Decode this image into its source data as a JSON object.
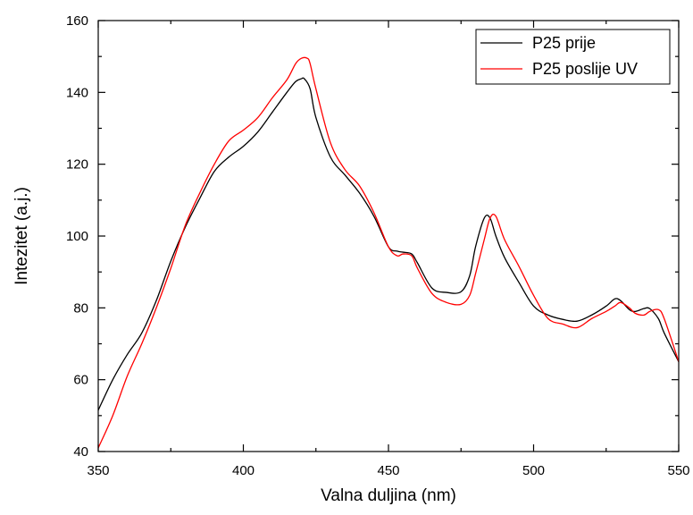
{
  "chart_data": {
    "type": "line",
    "xlabel": "Valna duljina (nm)",
    "ylabel": "Intezitet (a.j.)",
    "xlim": [
      350,
      550
    ],
    "ylim": [
      40,
      160
    ],
    "xticks": [
      350,
      400,
      450,
      500,
      550
    ],
    "yticks": [
      40,
      60,
      80,
      100,
      120,
      140,
      160
    ],
    "grid": false,
    "legend_position": "top-right",
    "series": [
      {
        "name": "P25 prije",
        "color": "#000000",
        "x": [
          350,
          355,
          360,
          365,
          370,
          375,
          380,
          385,
          390,
          395,
          400,
          405,
          410,
          415,
          418,
          420,
          421,
          423,
          425,
          430,
          435,
          440,
          445,
          450,
          453,
          455,
          458,
          460,
          465,
          470,
          475,
          478,
          480,
          483,
          485,
          487,
          490,
          495,
          500,
          505,
          510,
          515,
          520,
          525,
          528,
          530,
          533,
          535,
          538,
          540,
          543,
          545,
          550
        ],
        "y": [
          51.5,
          60,
          67,
          73,
          82,
          93,
          102.5,
          110.5,
          118,
          122,
          125,
          129,
          134.5,
          140,
          143,
          143.8,
          143.8,
          141,
          133,
          122,
          117,
          112,
          105.5,
          97,
          95.8,
          95.5,
          95,
          92.5,
          85.5,
          84.3,
          84.5,
          89,
          97,
          105,
          105,
          100,
          94,
          87,
          80.5,
          78,
          76.8,
          76.3,
          78,
          80.5,
          82.5,
          82,
          79.5,
          79,
          79.8,
          79.8,
          77,
          73,
          65
        ]
      },
      {
        "name": "P25 poslije UV",
        "color": "#ff0000",
        "x": [
          350,
          355,
          360,
          365,
          370,
          375,
          380,
          385,
          390,
          395,
          400,
          405,
          410,
          415,
          418,
          420,
          422,
          423,
          425,
          430,
          435,
          440,
          445,
          450,
          453,
          455,
          458,
          460,
          465,
          470,
          475,
          478,
          480,
          483,
          485,
          487,
          490,
          495,
          500,
          505,
          510,
          515,
          520,
          525,
          528,
          530,
          533,
          535,
          538,
          540,
          543,
          545,
          550
        ],
        "y": [
          41,
          50,
          61,
          70,
          80,
          91,
          103,
          112,
          120,
          126.5,
          129.5,
          133,
          138.5,
          143.5,
          148,
          149.5,
          149.5,
          148,
          141,
          126,
          118.5,
          114,
          106.5,
          97,
          94.5,
          95,
          94.5,
          91,
          84,
          81.5,
          81,
          83.5,
          89.5,
          99,
          105,
          105.5,
          99,
          91.5,
          83.5,
          77,
          75.5,
          74.5,
          77,
          79,
          80.5,
          81.5,
          80,
          78.5,
          78,
          79,
          79.5,
          77,
          65
        ]
      }
    ]
  }
}
